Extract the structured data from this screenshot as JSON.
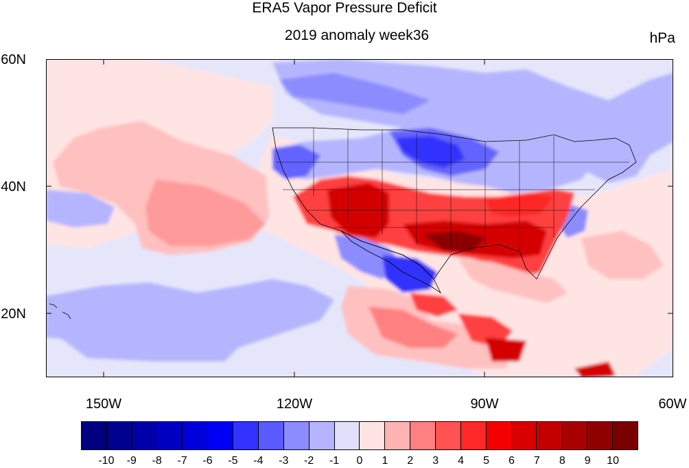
{
  "title": "ERA5 Vapor Pressure Deficit",
  "subtitle": "2019 anomaly week36",
  "units": "hPa",
  "lat_labels": [
    "60N",
    "40N",
    "20N"
  ],
  "lon_labels": [
    "150W",
    "120W",
    "90W",
    "60W"
  ],
  "colorbar": {
    "labels": [
      "-10",
      "-9",
      "-8",
      "-7",
      "-6",
      "-5",
      "-4",
      "-3",
      "-2",
      "-1",
      "0",
      "1",
      "2",
      "3",
      "4",
      "5",
      "6",
      "7",
      "8",
      "9",
      "10"
    ],
    "colors": [
      "#000080",
      "#00008f",
      "#0000a8",
      "#0000c2",
      "#0000dd",
      "#0000f5",
      "#3333ff",
      "#5a5aff",
      "#8c8cff",
      "#b5b5ff",
      "#e0e0fb",
      "#ffe4e4",
      "#ffb3b3",
      "#ff8080",
      "#ff5353",
      "#ff2828",
      "#f50000",
      "#db0000",
      "#c20000",
      "#a80000",
      "#8f0000",
      "#7a0000"
    ]
  },
  "anomaly_colors": {
    "strong_positive": "#d40000",
    "positive": "#ff4040",
    "weak_positive": "#ffc0c0",
    "neutral_pos": "#ffe4e4",
    "neutral_neg": "#e0e0fb",
    "weak_negative": "#b5b5ff",
    "negative": "#6464ff",
    "strong_negative": "#1f1fe0"
  }
}
